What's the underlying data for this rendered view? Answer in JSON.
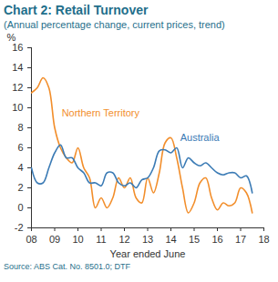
{
  "chart_data": {
    "type": "line",
    "title": "Chart 2: Retail Turnover",
    "subtitle": "(Annual percentage change, current prices, trend)",
    "caption": "Source: ABS Cat. No. 8501.0; DTF",
    "x_label": "Year ended June",
    "y_label": "%",
    "x": [
      2008,
      2008.25,
      2008.5,
      2008.75,
      2009,
      2009.25,
      2009.5,
      2009.75,
      2010,
      2010.25,
      2010.5,
      2010.75,
      2011,
      2011.25,
      2011.5,
      2011.75,
      2012,
      2012.25,
      2012.5,
      2012.75,
      2013,
      2013.25,
      2013.5,
      2013.75,
      2014,
      2014.25,
      2014.5,
      2014.75,
      2015,
      2015.25,
      2015.5,
      2015.75,
      2016,
      2016.25,
      2016.5,
      2016.75,
      2017,
      2017.25,
      2017.5
    ],
    "series": [
      {
        "name": "Northern Territory",
        "color": "#f28e2b",
        "values": [
          11.5,
          12,
          13,
          12,
          8,
          6,
          5,
          4.5,
          6,
          4,
          3,
          0,
          1,
          0,
          1,
          3,
          2,
          3,
          1,
          0.5,
          3,
          1.5,
          3.5,
          6.5,
          7,
          5,
          2,
          -0.5,
          0.5,
          2.5,
          3,
          1,
          -0.2,
          0.5,
          0.2,
          0.5,
          2,
          1.5,
          -0.5
        ]
      },
      {
        "name": "Australia",
        "color": "#3b7bb5",
        "values": [
          4,
          2.5,
          2.5,
          4,
          5.5,
          6.3,
          5,
          5,
          4,
          3.5,
          2.5,
          2.5,
          2.2,
          3.5,
          3.5,
          2.5,
          2.2,
          2.5,
          2,
          2.8,
          3,
          4,
          5.7,
          5.8,
          5.5,
          6,
          4,
          5,
          4.5,
          4.2,
          4.5,
          4,
          3.5,
          3.3,
          3.5,
          3.5,
          3,
          3.2,
          1.5
        ]
      }
    ],
    "annotations": [
      {
        "text": "Northern Territory",
        "x": 2009.3,
        "y": 9.5,
        "color": "#f28e2b"
      },
      {
        "text": "Australia",
        "x": 2014.4,
        "y": 7,
        "color": "#3b7bb5"
      }
    ],
    "xlim": [
      2008,
      2018
    ],
    "xticks": [
      {
        "value": 2008,
        "label": "08"
      },
      {
        "value": 2009,
        "label": "09"
      },
      {
        "value": 2010,
        "label": "10"
      },
      {
        "value": 2011,
        "label": "11"
      },
      {
        "value": 2012,
        "label": "12"
      },
      {
        "value": 2013,
        "label": "13"
      },
      {
        "value": 2014,
        "label": "14"
      },
      {
        "value": 2015,
        "label": "15"
      },
      {
        "value": 2016,
        "label": "16"
      },
      {
        "value": 2017,
        "label": "17"
      },
      {
        "value": 2018,
        "label": "18"
      }
    ],
    "ylim": [
      -2,
      16
    ],
    "yticks": [
      -2,
      0,
      2,
      4,
      6,
      8,
      10,
      12,
      14,
      16
    ],
    "grid": false
  }
}
